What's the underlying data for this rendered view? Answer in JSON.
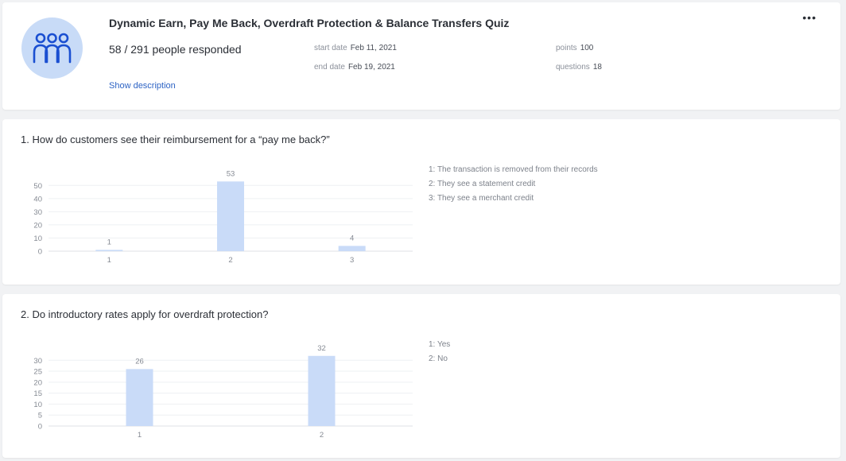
{
  "quiz": {
    "title": "Dynamic Earn, Pay Me Back, Overdraft Protection & Balance Transfers Quiz",
    "responded": "58 / 291 people responded",
    "show_description": "Show description",
    "start_label": "start date",
    "start_value": "Feb 11, 2021",
    "end_label": "end date",
    "end_value": "Feb 19, 2021",
    "points_label": "points",
    "points_value": "100",
    "questions_label": "questions",
    "questions_value": "18",
    "menu_icon": "more-horizontal-icon",
    "avatar_icon": "people-group-icon"
  },
  "colors": {
    "bar": "#c9dbf8",
    "avatar_bg": "#c8dbf7",
    "avatar_icon": "#1a4fd1",
    "link": "#2d63c4"
  },
  "questions": [
    {
      "title": "1. How do customers see their reimbursement for a “pay me back?”",
      "legend": [
        "1: The transaction is removed from their records",
        "2: They see a statement credit",
        "3: They see a merchant credit"
      ]
    },
    {
      "title": "2. Do introductory rates apply for overdraft protection?",
      "legend": [
        "1: Yes",
        "2: No"
      ]
    }
  ],
  "chart_data": [
    {
      "type": "bar",
      "categories": [
        "1",
        "2",
        "3"
      ],
      "values": [
        1,
        53,
        4
      ],
      "yticks": [
        0,
        10,
        20,
        30,
        40,
        50
      ],
      "ylim": [
        0,
        55
      ],
      "xlabel": "",
      "ylabel": "",
      "data_labels": true
    },
    {
      "type": "bar",
      "categories": [
        "1",
        "2"
      ],
      "values": [
        26,
        32
      ],
      "yticks": [
        0,
        5,
        10,
        15,
        20,
        25,
        30
      ],
      "ylim": [
        0,
        33
      ],
      "xlabel": "",
      "ylabel": "",
      "data_labels": true
    }
  ]
}
